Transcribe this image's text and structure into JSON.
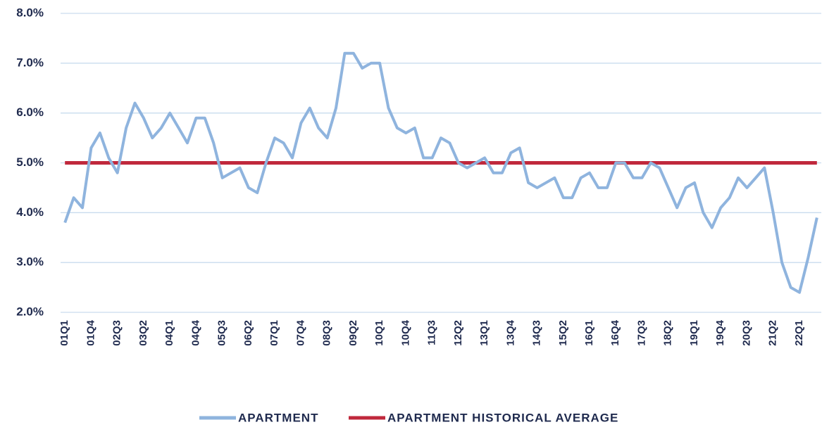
{
  "chart_data": {
    "type": "line",
    "categories": [
      "01Q1",
      null,
      null,
      "01Q4",
      null,
      null,
      "02Q3",
      null,
      null,
      "03Q2",
      null,
      null,
      "04Q1",
      null,
      null,
      "04Q4",
      null,
      null,
      "05Q3",
      null,
      null,
      "06Q2",
      null,
      null,
      "07Q1",
      null,
      null,
      "07Q4",
      null,
      null,
      "08Q3",
      null,
      null,
      "09Q2",
      null,
      null,
      "10Q1",
      null,
      null,
      "10Q4",
      null,
      null,
      "11Q3",
      null,
      null,
      "12Q2",
      null,
      null,
      "13Q1",
      null,
      null,
      "13Q4",
      null,
      null,
      "14Q3",
      null,
      null,
      "15Q2",
      null,
      null,
      "16Q1",
      null,
      null,
      "16Q4",
      null,
      null,
      "17Q3",
      null,
      null,
      "18Q2",
      null,
      null,
      "19Q1",
      null,
      null,
      "19Q4",
      null,
      null,
      "20Q3",
      null,
      null,
      "21Q2",
      null,
      null,
      "22Q1",
      null,
      null
    ],
    "series": [
      {
        "name": "APARTMENT",
        "color": "#8fb4de",
        "values": [
          3.8,
          4.3,
          4.1,
          5.3,
          5.6,
          5.1,
          4.8,
          5.7,
          6.2,
          5.9,
          5.5,
          5.7,
          6.0,
          5.7,
          5.4,
          5.9,
          5.9,
          5.4,
          4.7,
          4.8,
          4.9,
          4.5,
          4.4,
          5.0,
          5.5,
          5.4,
          5.1,
          5.8,
          6.1,
          5.7,
          5.5,
          6.1,
          7.2,
          7.2,
          6.9,
          7.0,
          7.0,
          6.1,
          5.7,
          5.6,
          5.7,
          5.1,
          5.1,
          5.5,
          5.4,
          5.0,
          4.9,
          5.0,
          5.1,
          4.8,
          4.8,
          5.2,
          5.3,
          4.6,
          4.5,
          4.6,
          4.7,
          4.3,
          4.3,
          4.7,
          4.8,
          4.5,
          4.5,
          5.0,
          5.0,
          4.7,
          4.7,
          5.0,
          4.9,
          4.5,
          4.1,
          4.5,
          4.6,
          4.0,
          3.7,
          4.1,
          4.3,
          4.7,
          4.5,
          4.7,
          4.9,
          4.0,
          3.0,
          2.5,
          2.4,
          3.1,
          3.9
        ]
      },
      {
        "name": "APARTMENT HISTORICAL AVERAGE",
        "color": "#c0283c",
        "values": [
          5,
          5,
          5,
          5,
          5,
          5,
          5,
          5,
          5,
          5,
          5,
          5,
          5,
          5,
          5,
          5,
          5,
          5,
          5,
          5,
          5,
          5,
          5,
          5,
          5,
          5,
          5,
          5,
          5,
          5,
          5,
          5,
          5,
          5,
          5,
          5,
          5,
          5,
          5,
          5,
          5,
          5,
          5,
          5,
          5,
          5,
          5,
          5,
          5,
          5,
          5,
          5,
          5,
          5,
          5,
          5,
          5,
          5,
          5,
          5,
          5,
          5,
          5,
          5,
          5,
          5,
          5,
          5,
          5,
          5,
          5,
          5,
          5,
          5,
          5,
          5,
          5,
          5,
          5,
          5,
          5,
          5,
          5,
          5,
          5,
          5,
          5
        ]
      }
    ],
    "ylim": [
      2,
      8
    ],
    "yticks": [
      {
        "value": 2,
        "label": "2.0%"
      },
      {
        "value": 3,
        "label": "3.0%"
      },
      {
        "value": 4,
        "label": "4.0%"
      },
      {
        "value": 5,
        "label": "5.0%"
      },
      {
        "value": 6,
        "label": "6.0%"
      },
      {
        "value": 7,
        "label": "7.0%"
      },
      {
        "value": 8,
        "label": "8.0%"
      }
    ],
    "grid": true,
    "legend": "bottom"
  }
}
